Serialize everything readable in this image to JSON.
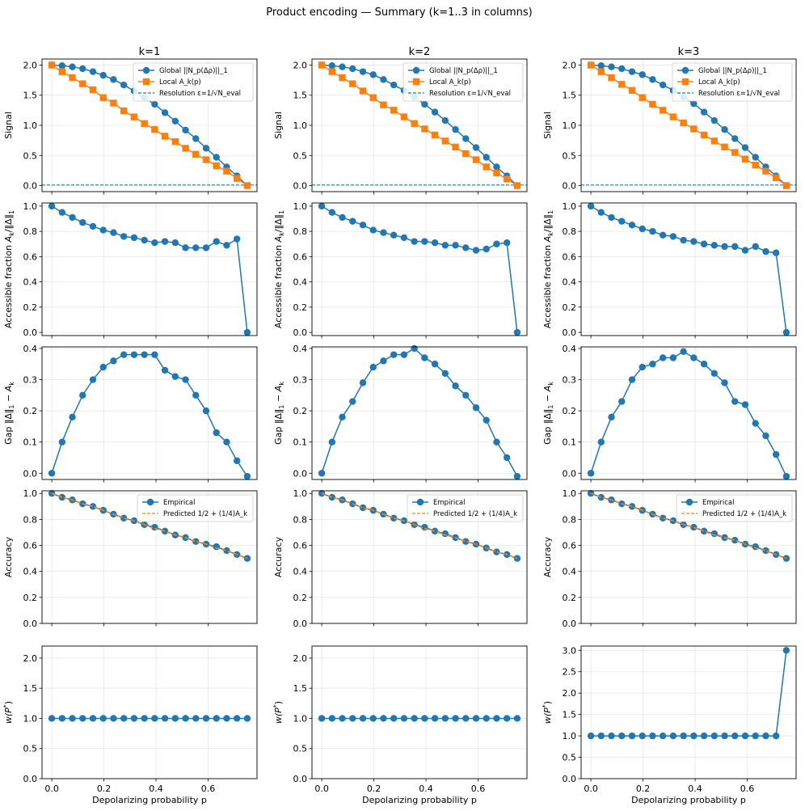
{
  "figure": {
    "title": "Product encoding — Summary (k=1..3 in columns)",
    "column_titles": [
      "k=1",
      "k=2",
      "k=3"
    ],
    "xlabel": "Depolarizing probability p"
  },
  "colors": {
    "blue": "#1f77b4",
    "orange": "#ff7f0e",
    "grid": "#b0b0b0"
  },
  "chart_data": {
    "type": "line",
    "x": [
      0.0,
      0.0395,
      0.0789,
      0.1184,
      0.1579,
      0.1974,
      0.2368,
      0.2763,
      0.3158,
      0.3553,
      0.3947,
      0.4342,
      0.4737,
      0.5132,
      0.5526,
      0.5921,
      0.6316,
      0.6711,
      0.7105,
      0.75
    ],
    "xlim": [
      -0.0375,
      0.7875
    ],
    "xticks": [
      0.0,
      0.2,
      0.4,
      0.6
    ],
    "xtick_labels": [
      "0.0",
      "0.2",
      "0.4",
      "0.6"
    ],
    "rows": [
      {
        "id": "signal",
        "ylabel": "Signal",
        "ylim": [
          -0.1,
          2.1
        ],
        "yticks": [
          0.0,
          0.5,
          1.0,
          1.5,
          2.0
        ],
        "ytick_labels": [
          "0.0",
          "0.5",
          "1.0",
          "1.5",
          "2.0"
        ],
        "legend": {
          "entries": [
            {
              "label": "Global  ||N_p(Δρ)||_1",
              "style": "line-marker",
              "marker": "circle",
              "color": "#1f77b4"
            },
            {
              "label": "Local  A_k(p)",
              "style": "line-marker",
              "marker": "square",
              "color": "#ff7f0e"
            },
            {
              "label": "Resolution  ε=1/√N_eval",
              "style": "dashed",
              "color": "#1f77b4"
            }
          ]
        },
        "panels": [
          {
            "series": [
              {
                "name": "Global  ||N_p(Δρ)||_1",
                "values": [
                  2.0,
                  1.99,
                  1.97,
                  1.94,
                  1.89,
                  1.83,
                  1.76,
                  1.67,
                  1.57,
                  1.46,
                  1.35,
                  1.21,
                  1.07,
                  0.92,
                  0.78,
                  0.62,
                  0.47,
                  0.31,
                  0.16,
                  0.0
                ]
              },
              {
                "name": "Local  A_k(p)",
                "values": [
                  2.0,
                  1.89,
                  1.79,
                  1.69,
                  1.59,
                  1.46,
                  1.37,
                  1.24,
                  1.14,
                  1.03,
                  0.93,
                  0.82,
                  0.73,
                  0.62,
                  0.52,
                  0.43,
                  0.33,
                  0.24,
                  0.12,
                  0.0
                ]
              }
            ],
            "resolution": 0.01
          },
          {
            "series": [
              {
                "name": "Global  ||N_p(Δρ)||_1",
                "values": [
                  2.0,
                  1.99,
                  1.97,
                  1.94,
                  1.89,
                  1.84,
                  1.76,
                  1.67,
                  1.58,
                  1.47,
                  1.35,
                  1.22,
                  1.08,
                  0.93,
                  0.78,
                  0.63,
                  0.47,
                  0.31,
                  0.16,
                  0.0
                ]
              },
              {
                "name": "Local  A_k(p)",
                "values": [
                  2.0,
                  1.89,
                  1.79,
                  1.69,
                  1.57,
                  1.46,
                  1.34,
                  1.25,
                  1.14,
                  1.03,
                  0.94,
                  0.84,
                  0.74,
                  0.64,
                  0.53,
                  0.43,
                  0.31,
                  0.21,
                  0.11,
                  0.0
                ]
              }
            ],
            "resolution": 0.01
          },
          {
            "series": [
              {
                "name": "Global  ||N_p(Δρ)||_1",
                "values": [
                  2.0,
                  1.99,
                  1.97,
                  1.94,
                  1.89,
                  1.84,
                  1.76,
                  1.67,
                  1.58,
                  1.47,
                  1.36,
                  1.22,
                  1.08,
                  0.93,
                  0.78,
                  0.63,
                  0.47,
                  0.31,
                  0.16,
                  0.0
                ]
              },
              {
                "name": "Local  A_k(p)",
                "values": [
                  2.0,
                  1.89,
                  1.79,
                  1.68,
                  1.58,
                  1.46,
                  1.35,
                  1.25,
                  1.14,
                  1.04,
                  0.94,
                  0.84,
                  0.74,
                  0.64,
                  0.55,
                  0.44,
                  0.34,
                  0.24,
                  0.13,
                  0.0
                ]
              }
            ],
            "resolution": 0.01
          }
        ]
      },
      {
        "id": "fraction",
        "ylabel_parts": [
          "Accessible fraction  ",
          "A",
          "k",
          "/‖Δ‖",
          "1"
        ],
        "ylim": [
          -0.025,
          1.025
        ],
        "yticks": [
          0.0,
          0.2,
          0.4,
          0.6,
          0.8,
          1.0
        ],
        "ytick_labels": [
          "0.0",
          "0.2",
          "0.4",
          "0.6",
          "0.8",
          "1.0"
        ],
        "panels": [
          {
            "series": [
              {
                "name": "fraction",
                "values": [
                  1.0,
                  0.95,
                  0.91,
                  0.87,
                  0.84,
                  0.81,
                  0.79,
                  0.76,
                  0.75,
                  0.73,
                  0.71,
                  0.72,
                  0.71,
                  0.67,
                  0.67,
                  0.67,
                  0.72,
                  0.69,
                  0.74,
                  0.0
                ]
              }
            ]
          },
          {
            "series": [
              {
                "name": "fraction",
                "values": [
                  1.0,
                  0.95,
                  0.91,
                  0.88,
                  0.85,
                  0.81,
                  0.79,
                  0.77,
                  0.75,
                  0.72,
                  0.72,
                  0.71,
                  0.69,
                  0.69,
                  0.67,
                  0.65,
                  0.66,
                  0.7,
                  0.71,
                  0.0
                ]
              }
            ]
          },
          {
            "series": [
              {
                "name": "fraction",
                "values": [
                  1.0,
                  0.95,
                  0.91,
                  0.88,
                  0.85,
                  0.82,
                  0.8,
                  0.77,
                  0.76,
                  0.73,
                  0.72,
                  0.7,
                  0.69,
                  0.68,
                  0.68,
                  0.65,
                  0.68,
                  0.64,
                  0.63,
                  0.0
                ]
              }
            ]
          }
        ]
      },
      {
        "id": "gap",
        "ylabel_parts": [
          "Gap  ",
          "‖Δ‖",
          "1",
          " − ",
          "A",
          "k"
        ],
        "ylim": [
          -0.02,
          0.405
        ],
        "yticks": [
          0.0,
          0.1,
          0.2,
          0.3,
          0.4
        ],
        "ytick_labels": [
          "0.0",
          "0.1",
          "0.2",
          "0.3",
          "0.4"
        ],
        "panels": [
          {
            "series": [
              {
                "name": "gap",
                "values": [
                  0.0,
                  0.1,
                  0.18,
                  0.25,
                  0.3,
                  0.34,
                  0.36,
                  0.38,
                  0.38,
                  0.38,
                  0.38,
                  0.33,
                  0.31,
                  0.3,
                  0.25,
                  0.2,
                  0.13,
                  0.1,
                  0.04,
                  -0.01
                ]
              }
            ]
          },
          {
            "series": [
              {
                "name": "gap",
                "values": [
                  0.0,
                  0.1,
                  0.18,
                  0.23,
                  0.29,
                  0.34,
                  0.36,
                  0.38,
                  0.38,
                  0.4,
                  0.37,
                  0.35,
                  0.32,
                  0.28,
                  0.25,
                  0.21,
                  0.17,
                  0.1,
                  0.05,
                  -0.01
                ]
              }
            ]
          },
          {
            "series": [
              {
                "name": "gap",
                "values": [
                  0.0,
                  0.1,
                  0.18,
                  0.23,
                  0.3,
                  0.34,
                  0.35,
                  0.37,
                  0.37,
                  0.39,
                  0.37,
                  0.35,
                  0.32,
                  0.29,
                  0.23,
                  0.22,
                  0.16,
                  0.12,
                  0.06,
                  -0.01
                ]
              }
            ]
          }
        ]
      },
      {
        "id": "accuracy",
        "ylabel": "Accuracy",
        "ylim": [
          0.0,
          1.02
        ],
        "yticks": [
          0.0,
          0.2,
          0.4,
          0.6,
          0.8,
          1.0
        ],
        "ytick_labels": [
          "0.0",
          "0.2",
          "0.4",
          "0.6",
          "0.8",
          "1.0"
        ],
        "legend": {
          "entries": [
            {
              "label": "Empirical",
              "style": "line-marker",
              "marker": "circle",
              "color": "#1f77b4"
            },
            {
              "label": "Predicted  1/2 + (1/4)A_k",
              "style": "dashed",
              "color": "#ff7f0e"
            }
          ]
        },
        "panels": [
          {
            "series": [
              {
                "name": "Empirical",
                "values": [
                  1.0,
                  0.97,
                  0.95,
                  0.92,
                  0.9,
                  0.87,
                  0.84,
                  0.81,
                  0.79,
                  0.76,
                  0.74,
                  0.71,
                  0.68,
                  0.66,
                  0.63,
                  0.61,
                  0.59,
                  0.56,
                  0.53,
                  0.5
                ]
              },
              {
                "name": "Predicted  1/2 + (1/4)A_k",
                "values": [
                  1.0,
                  0.97,
                  0.95,
                  0.92,
                  0.9,
                  0.87,
                  0.84,
                  0.81,
                  0.79,
                  0.76,
                  0.73,
                  0.71,
                  0.68,
                  0.66,
                  0.63,
                  0.61,
                  0.58,
                  0.56,
                  0.53,
                  0.5
                ]
              }
            ]
          },
          {
            "series": [
              {
                "name": "Empirical",
                "values": [
                  1.0,
                  0.97,
                  0.95,
                  0.92,
                  0.89,
                  0.87,
                  0.84,
                  0.81,
                  0.79,
                  0.76,
                  0.74,
                  0.71,
                  0.69,
                  0.66,
                  0.63,
                  0.61,
                  0.58,
                  0.55,
                  0.53,
                  0.5
                ]
              },
              {
                "name": "Predicted  1/2 + (1/4)A_k",
                "values": [
                  1.0,
                  0.97,
                  0.95,
                  0.92,
                  0.89,
                  0.87,
                  0.84,
                  0.81,
                  0.79,
                  0.76,
                  0.73,
                  0.71,
                  0.68,
                  0.66,
                  0.63,
                  0.61,
                  0.58,
                  0.55,
                  0.53,
                  0.5
                ]
              }
            ]
          },
          {
            "series": [
              {
                "name": "Empirical",
                "values": [
                  1.0,
                  0.97,
                  0.95,
                  0.92,
                  0.9,
                  0.87,
                  0.84,
                  0.81,
                  0.79,
                  0.76,
                  0.74,
                  0.71,
                  0.69,
                  0.66,
                  0.64,
                  0.61,
                  0.59,
                  0.56,
                  0.53,
                  0.5
                ]
              },
              {
                "name": "Predicted  1/2 + (1/4)A_k",
                "values": [
                  1.0,
                  0.97,
                  0.95,
                  0.92,
                  0.9,
                  0.87,
                  0.84,
                  0.81,
                  0.79,
                  0.76,
                  0.74,
                  0.71,
                  0.68,
                  0.66,
                  0.64,
                  0.61,
                  0.58,
                  0.56,
                  0.53,
                  0.5
                ]
              }
            ]
          }
        ]
      },
      {
        "id": "weight",
        "ylabel_parts": [
          "w(P",
          "*",
          ")"
        ],
        "panels": [
          {
            "ylim": [
              0.0,
              2.2
            ],
            "yticks": [
              0.0,
              0.5,
              1.0,
              1.5,
              2.0
            ],
            "ytick_labels": [
              "0.0",
              "0.5",
              "1.0",
              "1.5",
              "2.0"
            ],
            "series": [
              {
                "name": "w",
                "values": [
                  1,
                  1,
                  1,
                  1,
                  1,
                  1,
                  1,
                  1,
                  1,
                  1,
                  1,
                  1,
                  1,
                  1,
                  1,
                  1,
                  1,
                  1,
                  1,
                  1
                ]
              }
            ]
          },
          {
            "ylim": [
              0.0,
              2.2
            ],
            "yticks": [
              0.0,
              0.5,
              1.0,
              1.5,
              2.0
            ],
            "ytick_labels": [
              "0.0",
              "0.5",
              "1.0",
              "1.5",
              "2.0"
            ],
            "series": [
              {
                "name": "w",
                "values": [
                  1,
                  1,
                  1,
                  1,
                  1,
                  1,
                  1,
                  1,
                  1,
                  1,
                  1,
                  1,
                  1,
                  1,
                  1,
                  1,
                  1,
                  1,
                  1,
                  1
                ]
              }
            ]
          },
          {
            "ylim": [
              0.0,
              3.1
            ],
            "yticks": [
              0.0,
              0.5,
              1.0,
              1.5,
              2.0,
              2.5,
              3.0
            ],
            "ytick_labels": [
              "0.0",
              "0.5",
              "1.0",
              "1.5",
              "2.0",
              "2.5",
              "3.0"
            ],
            "series": [
              {
                "name": "w",
                "values": [
                  1,
                  1,
                  1,
                  1,
                  1,
                  1,
                  1,
                  1,
                  1,
                  1,
                  1,
                  1,
                  1,
                  1,
                  1,
                  1,
                  1,
                  1,
                  1,
                  3
                ]
              }
            ]
          }
        ]
      }
    ]
  }
}
